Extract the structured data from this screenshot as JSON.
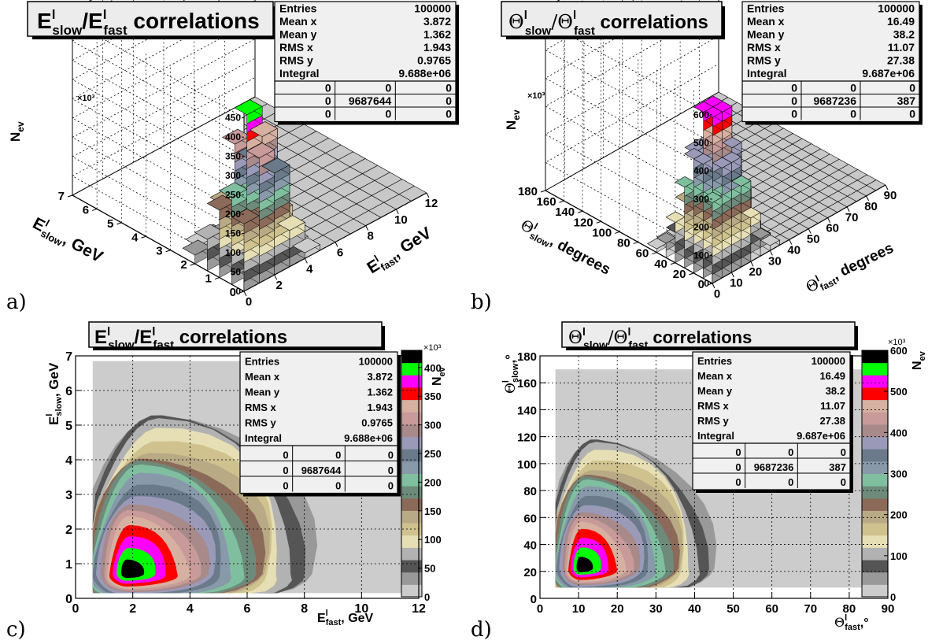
{
  "panels": {
    "a": {
      "letter": "a)",
      "title_main": "E",
      "title_sup1": "l",
      "title_sub1": "slow",
      "title_slash": "/E",
      "title_sup2": "l",
      "title_sub2": "fast",
      "title_rest": " correlations",
      "zlabel": "N",
      "zlabel_sub": "ev",
      "zexp": "×10³",
      "xlabel": "E",
      "xlabel_sup": "l",
      "xlabel_sub": "fast",
      "xlabel_unit": ", GeV",
      "ylabel": "E",
      "ylabel_sup": "l",
      "ylabel_sub": "slow",
      "ylabel_unit": ", GeV",
      "stats": {
        "rows": [
          [
            "Entries",
            "100000"
          ],
          [
            "Mean x",
            "3.872"
          ],
          [
            "Mean y",
            "1.362"
          ],
          [
            "RMS x",
            "1.943"
          ],
          [
            "RMS y",
            "0.9765"
          ],
          [
            "Integral",
            "9.688e+06"
          ]
        ],
        "grid": [
          [
            "0",
            "0",
            "0"
          ],
          [
            "0",
            "9687644",
            "0"
          ],
          [
            "0",
            "0",
            "0"
          ]
        ]
      }
    },
    "b": {
      "letter": "b)",
      "title_main": "Θ",
      "title_sup1": "l",
      "title_sub1": "slow",
      "title_slash": "/Θ",
      "title_sup2": "l",
      "title_sub2": "fast",
      "title_rest": " correlations",
      "zlabel": "N",
      "zlabel_sub": "ev",
      "zexp": "×10³",
      "xlabel": "Θ",
      "xlabel_sup": "l",
      "xlabel_sub": "fast",
      "xlabel_unit": ", degrees",
      "ylabel": "Θ",
      "ylabel_sup": "l",
      "ylabel_sub": "slow",
      "ylabel_unit": ", degrees",
      "stats": {
        "rows": [
          [
            "Entries",
            "100000"
          ],
          [
            "Mean x",
            "16.49"
          ],
          [
            "Mean y",
            "38.2"
          ],
          [
            "RMS x",
            "11.07"
          ],
          [
            "RMS y",
            "27.38"
          ],
          [
            "Integral",
            "9.687e+06"
          ]
        ],
        "grid": [
          [
            "0",
            "0",
            "0"
          ],
          [
            "0",
            "9687236",
            "387"
          ],
          [
            "0",
            "0",
            "0"
          ]
        ]
      }
    },
    "c": {
      "letter": "c)",
      "title_main": "E",
      "title_sup1": "l",
      "title_sub1": "slow",
      "title_slash": "/E",
      "title_sup2": "l",
      "title_sub2": "fast",
      "title_rest": " correlations",
      "xlabel": "E",
      "xlabel_sup": "l",
      "xlabel_sub": "fast",
      "xlabel_unit": ", GeV",
      "ylabel": "E",
      "ylabel_sup": "l",
      "ylabel_sub": "slow",
      "ylabel_unit": ", GeV",
      "zlabel": "N",
      "zlabel_sub": "ev",
      "zexp": "×10³",
      "stats": {
        "rows": [
          [
            "Entries",
            "100000"
          ],
          [
            "Mean x",
            "3.872"
          ],
          [
            "Mean y",
            "1.362"
          ],
          [
            "RMS x",
            "1.943"
          ],
          [
            "RMS y",
            "0.9765"
          ],
          [
            "Integral",
            "9.688e+06"
          ]
        ],
        "grid": [
          [
            "0",
            "0",
            "0"
          ],
          [
            "0",
            "9687644",
            "0"
          ],
          [
            "0",
            "0",
            "0"
          ]
        ]
      }
    },
    "d": {
      "letter": "d)",
      "title_main": "Θ",
      "title_sup1": "l",
      "title_sub1": "slow",
      "title_slash": "/Θ",
      "title_sup2": "l",
      "title_sub2": "fast",
      "title_rest": " correlations",
      "xlabel": "Θ",
      "xlabel_sup": "l",
      "xlabel_sub": "fast",
      "xlabel_unit": ",°",
      "ylabel": "Θ",
      "ylabel_sup": "l",
      "ylabel_sub": "slow",
      "ylabel_unit": ",°",
      "zlabel": "N",
      "zlabel_sub": "ev",
      "zexp": "×10³",
      "stats": {
        "rows": [
          [
            "Entries",
            "100000"
          ],
          [
            "Mean x",
            "16.49"
          ],
          [
            "Mean y",
            "38.2"
          ],
          [
            "RMS x",
            "11.07"
          ],
          [
            "RMS y",
            "27.38"
          ],
          [
            "Integral",
            "9.687e+06"
          ]
        ],
        "grid": [
          [
            "0",
            "0",
            "0"
          ],
          [
            "0",
            "9687236",
            "387"
          ],
          [
            "0",
            "0",
            "0"
          ]
        ]
      }
    }
  },
  "chart_data": [
    {
      "id": "a",
      "type": "heatmap",
      "view": "lego-3d",
      "x_ticks": [
        "0",
        "2",
        "4",
        "6",
        "8",
        "10",
        "12"
      ],
      "y_ticks": [
        "0",
        "1",
        "2",
        "3",
        "4",
        "5",
        "6",
        "7"
      ],
      "z_ticks": [
        "0",
        "50",
        "100",
        "150",
        "200",
        "250",
        "300",
        "350",
        "400",
        "450"
      ],
      "xlim": [
        0,
        12
      ],
      "ylim": [
        0,
        7
      ],
      "zlim": [
        0,
        480
      ],
      "peak": {
        "x": 1.75,
        "y": 0.75,
        "z": 430
      }
    },
    {
      "id": "b",
      "type": "heatmap",
      "view": "lego-3d",
      "x_ticks": [
        "0",
        "10",
        "20",
        "30",
        "40",
        "50",
        "60",
        "70",
        "80",
        "90"
      ],
      "y_ticks": [
        "0",
        "20",
        "40",
        "60",
        "80",
        "100",
        "120",
        "140",
        "160",
        "180"
      ],
      "z_ticks": [
        "0",
        "100",
        "200",
        "300",
        "400",
        "500",
        "600"
      ],
      "xlim": [
        0,
        90
      ],
      "ylim": [
        0,
        180
      ],
      "zlim": [
        0,
        650
      ],
      "peak": {
        "x": 10,
        "y": 20,
        "z": 600
      }
    },
    {
      "id": "c",
      "type": "heatmap",
      "view": "contour",
      "x_ticks": [
        "0",
        "2",
        "4",
        "6",
        "8",
        "10",
        "12"
      ],
      "y_ticks": [
        "0",
        "1",
        "2",
        "3",
        "4",
        "5",
        "6",
        "7"
      ],
      "palette_ticks": [
        "0",
        "50",
        "100",
        "150",
        "200",
        "250",
        "300",
        "350",
        "400"
      ],
      "xlim": [
        0,
        12
      ],
      "ylim": [
        0,
        7
      ],
      "zlim": [
        0,
        430
      ],
      "peak": {
        "x": 1.8,
        "y": 0.7
      },
      "grid": true
    },
    {
      "id": "d",
      "type": "heatmap",
      "view": "contour",
      "x_ticks": [
        "0",
        "10",
        "20",
        "30",
        "40",
        "50",
        "60",
        "70",
        "80",
        "90"
      ],
      "y_ticks": [
        "0",
        "20",
        "40",
        "60",
        "80",
        "100",
        "120",
        "140",
        "160",
        "180"
      ],
      "palette_ticks": [
        "0",
        "100",
        "200",
        "300",
        "400",
        "500",
        "600"
      ],
      "xlim": [
        0,
        90
      ],
      "ylim": [
        0,
        180
      ],
      "zlim": [
        0,
        600
      ],
      "peak": {
        "x": 10.5,
        "y": 22
      },
      "grid": true
    }
  ],
  "palette": [
    "#cccccc",
    "#999999",
    "#555555",
    "#b2b2b2",
    "#e6dfb5",
    "#cfc28f",
    "#b8aa85",
    "#8c6a5a",
    "#6e8a7a",
    "#7fbf9f",
    "#8899aa",
    "#6a7a8a",
    "#9a9ab8",
    "#a88a8a",
    "#c89a9a",
    "#d6b0a0",
    "#ff0000",
    "#ff00ff",
    "#00ff00",
    "#000000"
  ]
}
